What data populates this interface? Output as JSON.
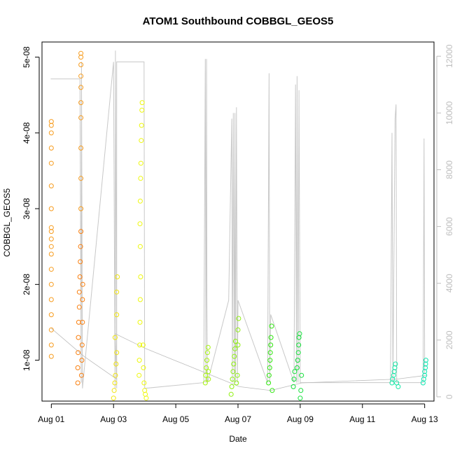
{
  "chart_data": {
    "type": "scatter",
    "title": "ATOM1 Southbound COBBGL_GEOS5",
    "xlabel": "Date",
    "ylabel": "COBBGL_GEOS5",
    "x_tick_labels": [
      "Aug 01",
      "Aug 03",
      "Aug 05",
      "Aug 07",
      "Aug 09",
      "Aug 11",
      "Aug 13"
    ],
    "x_tick_values": [
      1,
      3,
      5,
      7,
      9,
      11,
      13
    ],
    "xlim": [
      0.7,
      13.3
    ],
    "y_tick_labels": [
      "1e-08",
      "2e-08",
      "3e-08",
      "4e-08",
      "5e-08"
    ],
    "y_tick_values": [
      1e-08,
      2e-08,
      3e-08,
      4e-08,
      5e-08
    ],
    "ylim": [
      4.6e-09,
      5.2e-08
    ],
    "y2_tick_labels": [
      "0",
      "2000",
      "4000",
      "6000",
      "8000",
      "10000",
      "12000"
    ],
    "y2_tick_values": [
      0,
      2000,
      4000,
      6000,
      8000,
      10000,
      12000
    ],
    "y2lim": [
      -150,
      12500
    ],
    "axis_color_secondary": "#bebebe",
    "altitude_line_color": "#c8c8c8",
    "grid": false,
    "series": [
      {
        "color": "#f79c1e",
        "points": [
          {
            "x": 1.0,
            "y": 1.05e-08
          },
          {
            "x": 1.0,
            "y": 1.2e-08
          },
          {
            "x": 1.0,
            "y": 1.4e-08
          },
          {
            "x": 1.0,
            "y": 1.6e-08
          },
          {
            "x": 1.0,
            "y": 1.8e-08
          },
          {
            "x": 1.0,
            "y": 2e-08
          },
          {
            "x": 1.0,
            "y": 2.2e-08
          },
          {
            "x": 1.0,
            "y": 2.4e-08
          },
          {
            "x": 1.0,
            "y": 2.5e-08
          },
          {
            "x": 1.0,
            "y": 2.6e-08
          },
          {
            "x": 1.0,
            "y": 2.7e-08
          },
          {
            "x": 1.0,
            "y": 2.75e-08
          },
          {
            "x": 1.0,
            "y": 3e-08
          },
          {
            "x": 1.0,
            "y": 3.3e-08
          },
          {
            "x": 1.0,
            "y": 3.6e-08
          },
          {
            "x": 1.0,
            "y": 3.8e-08
          },
          {
            "x": 1.0,
            "y": 4e-08
          },
          {
            "x": 1.0,
            "y": 4.1e-08
          },
          {
            "x": 1.0,
            "y": 4.15e-08
          },
          {
            "x": 1.95,
            "y": 3e-08
          },
          {
            "x": 1.95,
            "y": 3.4e-08
          },
          {
            "x": 1.95,
            "y": 3.8e-08
          },
          {
            "x": 1.95,
            "y": 4.2e-08
          },
          {
            "x": 1.95,
            "y": 4.4e-08
          },
          {
            "x": 1.95,
            "y": 4.6e-08
          },
          {
            "x": 1.95,
            "y": 4.75e-08
          },
          {
            "x": 1.95,
            "y": 4.9e-08
          },
          {
            "x": 1.95,
            "y": 5e-08
          },
          {
            "x": 1.95,
            "y": 5.05e-08
          }
        ]
      },
      {
        "color": "#f97f0f",
        "points": [
          {
            "x": 1.85,
            "y": 7e-09
          },
          {
            "x": 1.85,
            "y": 9e-09
          },
          {
            "x": 1.86,
            "y": 1.1e-08
          },
          {
            "x": 1.87,
            "y": 1.3e-08
          },
          {
            "x": 1.88,
            "y": 1.5e-08
          },
          {
            "x": 1.9,
            "y": 1.7e-08
          },
          {
            "x": 1.9,
            "y": 1.9e-08
          },
          {
            "x": 1.92,
            "y": 2.1e-08
          },
          {
            "x": 1.93,
            "y": 2.3e-08
          },
          {
            "x": 1.94,
            "y": 2.5e-08
          },
          {
            "x": 1.95,
            "y": 2.7e-08
          },
          {
            "x": 1.97,
            "y": 8e-09
          },
          {
            "x": 1.98,
            "y": 1e-08
          },
          {
            "x": 1.99,
            "y": 1.2e-08
          },
          {
            "x": 2.0,
            "y": 1.5e-08
          },
          {
            "x": 2.0,
            "y": 1.8e-08
          },
          {
            "x": 2.01,
            "y": 2e-08
          }
        ]
      },
      {
        "color": "#f1e40f",
        "points": [
          {
            "x": 3.0,
            "y": 5e-09
          },
          {
            "x": 3.02,
            "y": 6e-09
          },
          {
            "x": 3.04,
            "y": 7e-09
          },
          {
            "x": 3.06,
            "y": 8e-09
          },
          {
            "x": 3.08,
            "y": 9.5e-09
          },
          {
            "x": 3.1,
            "y": 1.1e-08
          },
          {
            "x": 3.05,
            "y": 1.3e-08
          },
          {
            "x": 3.1,
            "y": 1.6e-08
          },
          {
            "x": 3.1,
            "y": 1.9e-08
          },
          {
            "x": 3.12,
            "y": 2.1e-08
          }
        ]
      },
      {
        "color": "#eef80c",
        "points": [
          {
            "x": 3.82,
            "y": 8e-09
          },
          {
            "x": 3.83,
            "y": 1e-08
          },
          {
            "x": 3.84,
            "y": 1.2e-08
          },
          {
            "x": 3.85,
            "y": 1.5e-08
          },
          {
            "x": 3.86,
            "y": 1.8e-08
          },
          {
            "x": 3.87,
            "y": 2.1e-08
          },
          {
            "x": 3.86,
            "y": 2.5e-08
          },
          {
            "x": 3.85,
            "y": 2.8e-08
          },
          {
            "x": 3.86,
            "y": 3.1e-08
          },
          {
            "x": 3.87,
            "y": 3.4e-08
          },
          {
            "x": 3.88,
            "y": 3.6e-08
          },
          {
            "x": 3.89,
            "y": 3.9e-08
          },
          {
            "x": 3.9,
            "y": 4.1e-08
          },
          {
            "x": 3.91,
            "y": 4.3e-08
          },
          {
            "x": 3.92,
            "y": 4.4e-08
          },
          {
            "x": 3.95,
            "y": 1.2e-08
          },
          {
            "x": 3.96,
            "y": 9e-09
          },
          {
            "x": 3.98,
            "y": 7e-09
          },
          {
            "x": 4.0,
            "y": 6e-09
          },
          {
            "x": 4.02,
            "y": 5.5e-09
          },
          {
            "x": 4.05,
            "y": 5e-09
          }
        ]
      },
      {
        "color": "#a6f40d",
        "points": [
          {
            "x": 5.95,
            "y": 7e-09
          },
          {
            "x": 5.96,
            "y": 8e-09
          },
          {
            "x": 5.98,
            "y": 9e-09
          },
          {
            "x": 6.0,
            "y": 1e-08
          },
          {
            "x": 6.02,
            "y": 1.1e-08
          },
          {
            "x": 6.04,
            "y": 1.17e-08
          },
          {
            "x": 6.05,
            "y": 7.5e-09
          },
          {
            "x": 6.05,
            "y": 8.5e-09
          }
        ]
      },
      {
        "color": "#8ef00f",
        "points": [
          {
            "x": 6.78,
            "y": 5.5e-09
          },
          {
            "x": 6.8,
            "y": 6.5e-09
          },
          {
            "x": 6.82,
            "y": 7.5e-09
          },
          {
            "x": 6.84,
            "y": 8.5e-09
          },
          {
            "x": 6.86,
            "y": 9.5e-09
          },
          {
            "x": 6.88,
            "y": 1.05e-08
          },
          {
            "x": 6.9,
            "y": 1.15e-08
          },
          {
            "x": 6.92,
            "y": 1.25e-08
          },
          {
            "x": 6.95,
            "y": 7e-09
          },
          {
            "x": 6.98,
            "y": 8e-09
          },
          {
            "x": 7.0,
            "y": 1.2e-08
          },
          {
            "x": 7.0,
            "y": 1.4e-08
          },
          {
            "x": 7.02,
            "y": 1.55e-08
          }
        ]
      },
      {
        "color": "#2fe80e",
        "points": [
          {
            "x": 7.98,
            "y": 7e-09
          },
          {
            "x": 8.0,
            "y": 8e-09
          },
          {
            "x": 8.02,
            "y": 9e-09
          },
          {
            "x": 8.03,
            "y": 1e-08
          },
          {
            "x": 8.04,
            "y": 1.1e-08
          },
          {
            "x": 8.05,
            "y": 1.2e-08
          },
          {
            "x": 8.06,
            "y": 1.3e-08
          },
          {
            "x": 8.08,
            "y": 1.45e-08
          },
          {
            "x": 8.1,
            "y": 6e-09
          }
        ]
      },
      {
        "color": "#14e03a",
        "points": [
          {
            "x": 8.78,
            "y": 6.5e-09
          },
          {
            "x": 8.8,
            "y": 7.5e-09
          },
          {
            "x": 8.82,
            "y": 8.5e-09
          },
          {
            "x": 8.9,
            "y": 9e-09
          },
          {
            "x": 8.92,
            "y": 1e-08
          },
          {
            "x": 8.94,
            "y": 1.1e-08
          },
          {
            "x": 8.95,
            "y": 1.2e-08
          },
          {
            "x": 8.96,
            "y": 1.3e-08
          },
          {
            "x": 8.98,
            "y": 1.35e-08
          },
          {
            "x": 9.0,
            "y": 5e-09
          },
          {
            "x": 9.02,
            "y": 6e-09
          },
          {
            "x": 9.04,
            "y": 8e-09
          }
        ]
      },
      {
        "color": "#16e6a6",
        "points": [
          {
            "x": 11.95,
            "y": 7e-09
          },
          {
            "x": 11.97,
            "y": 7.5e-09
          },
          {
            "x": 12.0,
            "y": 8e-09
          },
          {
            "x": 12.02,
            "y": 8.5e-09
          },
          {
            "x": 12.04,
            "y": 9e-09
          },
          {
            "x": 12.06,
            "y": 9.5e-09
          },
          {
            "x": 12.1,
            "y": 7e-09
          },
          {
            "x": 12.15,
            "y": 6.5e-09
          }
        ]
      },
      {
        "color": "#0fe6b0",
        "points": [
          {
            "x": 12.95,
            "y": 7e-09
          },
          {
            "x": 12.97,
            "y": 7.5e-09
          },
          {
            "x": 13.0,
            "y": 8e-09
          },
          {
            "x": 13.0,
            "y": 8.5e-09
          },
          {
            "x": 13.02,
            "y": 9e-09
          },
          {
            "x": 13.03,
            "y": 9.5e-09
          },
          {
            "x": 13.04,
            "y": 1e-08
          }
        ]
      }
    ],
    "altitude": [
      {
        "x": 0.98,
        "y": 11200
      },
      {
        "x": 1.92,
        "y": 11200
      },
      {
        "x": 1.96,
        "y": 500
      },
      {
        "x": 1.97,
        "y": 11800
      },
      {
        "x": 2.0,
        "y": 300
      },
      {
        "x": 3.0,
        "y": 11800
      },
      {
        "x": 3.05,
        "y": 300
      },
      {
        "x": 3.06,
        "y": 12200
      },
      {
        "x": 3.1,
        "y": 300
      },
      {
        "x": 3.1,
        "y": 11800
      },
      {
        "x": 3.98,
        "y": 11800
      },
      {
        "x": 4.0,
        "y": 300
      },
      {
        "x": 5.9,
        "y": 500
      },
      {
        "x": 5.95,
        "y": 11900
      },
      {
        "x": 5.97,
        "y": 500
      },
      {
        "x": 5.99,
        "y": 11900
      },
      {
        "x": 6.0,
        "y": 3500
      },
      {
        "x": 6.02,
        "y": 500
      },
      {
        "x": 6.7,
        "y": 3400
      },
      {
        "x": 6.8,
        "y": 9800
      },
      {
        "x": 6.82,
        "y": 500
      },
      {
        "x": 6.85,
        "y": 10000
      },
      {
        "x": 6.88,
        "y": 500
      },
      {
        "x": 6.9,
        "y": 10000
      },
      {
        "x": 6.92,
        "y": 500
      },
      {
        "x": 6.95,
        "y": 10200
      },
      {
        "x": 6.98,
        "y": 500
      },
      {
        "x": 7.0,
        "y": 3400
      },
      {
        "x": 7.95,
        "y": 500
      },
      {
        "x": 8.0,
        "y": 11400
      },
      {
        "x": 8.02,
        "y": 500
      },
      {
        "x": 8.05,
        "y": 2900
      },
      {
        "x": 8.8,
        "y": 500
      },
      {
        "x": 8.85,
        "y": 11000
      },
      {
        "x": 8.88,
        "y": 500
      },
      {
        "x": 8.9,
        "y": 11300
      },
      {
        "x": 8.93,
        "y": 500
      },
      {
        "x": 8.96,
        "y": 10800
      },
      {
        "x": 9.0,
        "y": 500
      },
      {
        "x": 11.9,
        "y": 500
      },
      {
        "x": 11.95,
        "y": 9300
      },
      {
        "x": 11.98,
        "y": 500
      },
      {
        "x": 12.05,
        "y": 9800
      },
      {
        "x": 12.08,
        "y": 10300
      },
      {
        "x": 12.1,
        "y": 500
      },
      {
        "x": 12.95,
        "y": 500
      },
      {
        "x": 12.98,
        "y": 9100
      },
      {
        "x": 13.0,
        "y": 800
      }
    ],
    "track": [
      {
        "x": 1.0,
        "y": 1.42e-08
      },
      {
        "x": 2.05,
        "y": 1.05e-08
      },
      {
        "x": 3.1,
        "y": 7.5e-09
      },
      {
        "x": 3.05,
        "y": 1.35e-08
      },
      {
        "x": 4.05,
        "y": 1.15e-08
      },
      {
        "x": 7.05,
        "y": 6.5e-09
      },
      {
        "x": 8.05,
        "y": 6e-09
      },
      {
        "x": 9.05,
        "y": 7e-09
      },
      {
        "x": 12.1,
        "y": 7.5e-09
      },
      {
        "x": 13.05,
        "y": 8e-09
      }
    ]
  }
}
